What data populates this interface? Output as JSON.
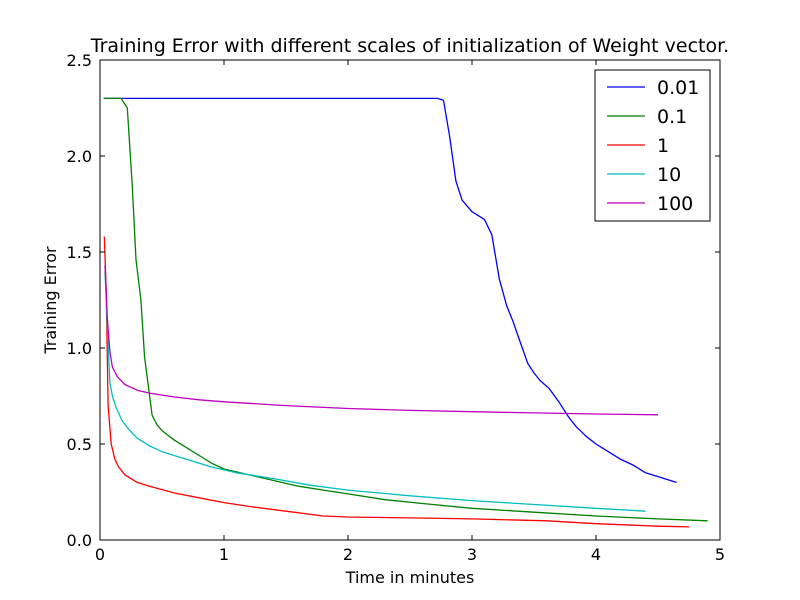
{
  "chart_data": {
    "type": "line",
    "title": "Training Error with different scales of initialization of Weight vector.",
    "xlabel": "Time in minutes",
    "ylabel": "Training Error",
    "xlim": [
      0,
      5
    ],
    "ylim": [
      0,
      2.5
    ],
    "xticks": [
      "0",
      "1",
      "2",
      "3",
      "4",
      "5"
    ],
    "yticks": [
      "0.0",
      "0.5",
      "1.0",
      "1.5",
      "2.0",
      "2.5"
    ],
    "grid": false,
    "legend_position": "top-right",
    "series": [
      {
        "name": "0.01",
        "color": "#0000ff",
        "points": [
          [
            0.03,
            2.3
          ],
          [
            0.5,
            2.3
          ],
          [
            1.0,
            2.3
          ],
          [
            1.5,
            2.3
          ],
          [
            2.0,
            2.3
          ],
          [
            2.5,
            2.3
          ],
          [
            2.72,
            2.3
          ],
          [
            2.77,
            2.29
          ],
          [
            2.82,
            2.1
          ],
          [
            2.87,
            1.87
          ],
          [
            2.92,
            1.77
          ],
          [
            3.0,
            1.71
          ],
          [
            3.1,
            1.67
          ],
          [
            3.16,
            1.59
          ],
          [
            3.22,
            1.36
          ],
          [
            3.28,
            1.22
          ],
          [
            3.33,
            1.14
          ],
          [
            3.4,
            1.01
          ],
          [
            3.45,
            0.92
          ],
          [
            3.5,
            0.87
          ],
          [
            3.55,
            0.83
          ],
          [
            3.62,
            0.79
          ],
          [
            3.7,
            0.72
          ],
          [
            3.78,
            0.64
          ],
          [
            3.84,
            0.59
          ],
          [
            3.92,
            0.54
          ],
          [
            4.0,
            0.5
          ],
          [
            4.1,
            0.46
          ],
          [
            4.2,
            0.42
          ],
          [
            4.3,
            0.39
          ],
          [
            4.4,
            0.35
          ],
          [
            4.5,
            0.33
          ],
          [
            4.6,
            0.31
          ],
          [
            4.65,
            0.3
          ]
        ]
      },
      {
        "name": "0.1",
        "color": "#008000",
        "points": [
          [
            0.03,
            2.3
          ],
          [
            0.17,
            2.3
          ],
          [
            0.22,
            2.25
          ],
          [
            0.26,
            1.85
          ],
          [
            0.29,
            1.46
          ],
          [
            0.33,
            1.25
          ],
          [
            0.36,
            0.95
          ],
          [
            0.39,
            0.8
          ],
          [
            0.42,
            0.65
          ],
          [
            0.46,
            0.6
          ],
          [
            0.5,
            0.57
          ],
          [
            0.6,
            0.52
          ],
          [
            0.7,
            0.48
          ],
          [
            0.8,
            0.44
          ],
          [
            0.9,
            0.4
          ],
          [
            1.0,
            0.37
          ],
          [
            1.2,
            0.34
          ],
          [
            1.4,
            0.31
          ],
          [
            1.6,
            0.28
          ],
          [
            1.8,
            0.26
          ],
          [
            2.0,
            0.24
          ],
          [
            2.3,
            0.21
          ],
          [
            2.6,
            0.19
          ],
          [
            3.0,
            0.165
          ],
          [
            3.5,
            0.145
          ],
          [
            4.0,
            0.125
          ],
          [
            4.5,
            0.11
          ],
          [
            4.9,
            0.1
          ]
        ]
      },
      {
        "name": "1",
        "color": "#ff0000",
        "points": [
          [
            0.035,
            1.58
          ],
          [
            0.05,
            1.3
          ],
          [
            0.065,
            0.7
          ],
          [
            0.09,
            0.5
          ],
          [
            0.12,
            0.42
          ],
          [
            0.15,
            0.38
          ],
          [
            0.2,
            0.34
          ],
          [
            0.3,
            0.3
          ],
          [
            0.4,
            0.28
          ],
          [
            0.6,
            0.245
          ],
          [
            0.8,
            0.22
          ],
          [
            1.0,
            0.195
          ],
          [
            1.2,
            0.175
          ],
          [
            1.5,
            0.15
          ],
          [
            1.8,
            0.125
          ],
          [
            2.0,
            0.12
          ],
          [
            2.5,
            0.115
          ],
          [
            3.0,
            0.11
          ],
          [
            3.6,
            0.1
          ],
          [
            4.0,
            0.085
          ],
          [
            4.5,
            0.072
          ],
          [
            4.75,
            0.068
          ]
        ]
      },
      {
        "name": "10",
        "color": "#00bfbf",
        "points": [
          [
            0.04,
            1.4
          ],
          [
            0.06,
            1.1
          ],
          [
            0.08,
            0.82
          ],
          [
            0.1,
            0.75
          ],
          [
            0.13,
            0.69
          ],
          [
            0.18,
            0.62
          ],
          [
            0.24,
            0.57
          ],
          [
            0.3,
            0.53
          ],
          [
            0.4,
            0.49
          ],
          [
            0.5,
            0.46
          ],
          [
            0.7,
            0.42
          ],
          [
            0.9,
            0.38
          ],
          [
            1.1,
            0.35
          ],
          [
            1.4,
            0.32
          ],
          [
            1.7,
            0.285
          ],
          [
            2.0,
            0.26
          ],
          [
            2.5,
            0.23
          ],
          [
            3.0,
            0.205
          ],
          [
            3.5,
            0.185
          ],
          [
            4.0,
            0.165
          ],
          [
            4.4,
            0.15
          ]
        ]
      },
      {
        "name": "100",
        "color": "#bf00bf",
        "points": [
          [
            0.04,
            1.43
          ],
          [
            0.06,
            1.15
          ],
          [
            0.08,
            0.98
          ],
          [
            0.1,
            0.9
          ],
          [
            0.14,
            0.85
          ],
          [
            0.2,
            0.81
          ],
          [
            0.3,
            0.78
          ],
          [
            0.4,
            0.765
          ],
          [
            0.6,
            0.745
          ],
          [
            0.8,
            0.73
          ],
          [
            1.0,
            0.72
          ],
          [
            1.5,
            0.7
          ],
          [
            2.0,
            0.685
          ],
          [
            2.5,
            0.675
          ],
          [
            3.0,
            0.668
          ],
          [
            3.5,
            0.662
          ],
          [
            4.0,
            0.656
          ],
          [
            4.5,
            0.652
          ]
        ]
      }
    ]
  }
}
